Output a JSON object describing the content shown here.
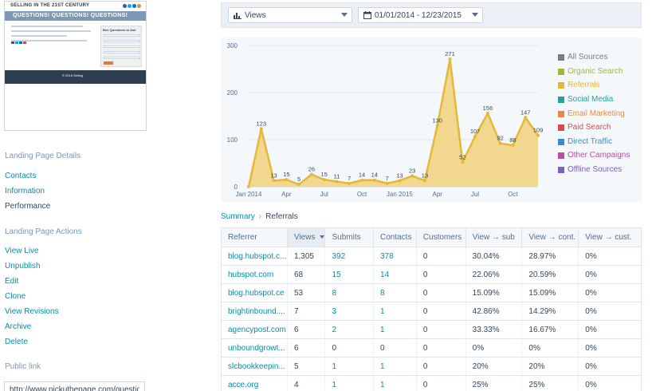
{
  "thumbnail": {
    "brand": "SELLING IN THE 21ST CENTURY",
    "banner": "QUESTIONS! QUESTIONS! QUESTIONS!",
    "form_title": "Ben Questions to Ask",
    "footer": "© 2015 Selling"
  },
  "sidebar": {
    "details_heading": "Landing Page Details",
    "details_links": [
      {
        "label": "Contacts"
      },
      {
        "label": "Information"
      },
      {
        "label": "Performance",
        "active": true
      }
    ],
    "actions_heading": "Landing Page Actions",
    "action_links": [
      {
        "label": "View Live"
      },
      {
        "label": "Unpublish"
      },
      {
        "label": "Edit"
      },
      {
        "label": "Clone"
      },
      {
        "label": "View Revisions"
      },
      {
        "label": "Archive"
      },
      {
        "label": "Delete"
      }
    ],
    "public_link_heading": "Public link",
    "public_link_value": "http://www.pickuthepage.com/questions"
  },
  "filters": {
    "metric": "Views",
    "date_range": "01/01/2014 - 12/23/2015"
  },
  "chart_data": {
    "type": "area",
    "x": [
      "Jan 2014",
      "Feb 2014",
      "Mar 2014",
      "Apr 2014",
      "May 2014",
      "Jun 2014",
      "Jul 2014",
      "Aug 2014",
      "Sep 2014",
      "Oct 2014",
      "Nov 2014",
      "Dec 2014",
      "Jan 2015",
      "Feb 2015",
      "Mar 2015",
      "Apr 2015",
      "May 2015",
      "Jun 2015",
      "Jul 2015",
      "Aug 2015",
      "Sep 2015",
      "Oct 2015",
      "Nov 2015",
      "Dec 2015"
    ],
    "xticks": [
      "Jan 2014",
      "Apr",
      "Jul",
      "Oct",
      "Jan 2015",
      "Apr",
      "Jul",
      "Oct"
    ],
    "values": [
      0,
      123,
      13,
      15,
      5,
      26,
      15,
      11,
      7,
      14,
      14,
      7,
      13,
      23,
      13,
      130,
      271,
      52,
      107,
      156,
      92,
      88,
      147,
      109
    ],
    "point_labels": [
      "",
      "123",
      "13",
      "15",
      "5",
      "26",
      "15",
      "11",
      "7",
      "14",
      "14",
      "7",
      "13",
      "23",
      "13",
      "130",
      "271",
      "52",
      "107",
      "156",
      "92",
      "88",
      "147",
      "109"
    ],
    "ylim": [
      0,
      300
    ],
    "yticks": [
      0,
      100,
      200,
      300
    ],
    "color": "#e4b839",
    "grid": true,
    "legend_position": "right"
  },
  "legend": [
    {
      "label": "All Sources",
      "color": "#7c7c7c"
    },
    {
      "label": "Organic Search",
      "color": "#a6b53a"
    },
    {
      "label": "Referrals",
      "color": "#e4b839"
    },
    {
      "label": "Social Media",
      "color": "#2aa39a"
    },
    {
      "label": "Email Marketing",
      "color": "#e68a45"
    },
    {
      "label": "Paid Search",
      "color": "#d84b4b"
    },
    {
      "label": "Direct Traffic",
      "color": "#3d8ccf"
    },
    {
      "label": "Other Campaigns",
      "color": "#b9519b"
    },
    {
      "label": "Offline Sources",
      "color": "#7b5ec6"
    }
  ],
  "breadcrumb": {
    "root": "Summary",
    "separator": "›",
    "current": "Referrals"
  },
  "table": {
    "columns": [
      "Referrer",
      "Views",
      "Submits",
      "Contacts",
      "Customers",
      "View → sub",
      "View → cont.",
      "View → cust."
    ],
    "rows": [
      [
        "blog.hubspot.c...",
        "1,305",
        "392",
        "378",
        "0",
        "30.04%",
        "28.97%",
        "0%"
      ],
      [
        "hubspot.com",
        "68",
        "15",
        "14",
        "0",
        "22.06%",
        "20.59%",
        "0%"
      ],
      [
        "blog.hubspot.ce",
        "53",
        "8",
        "8",
        "0",
        "15.09%",
        "15.09%",
        "0%"
      ],
      [
        "brightinbound....",
        "7",
        "3",
        "1",
        "0",
        "42.86%",
        "14.29%",
        "0%"
      ],
      [
        "agencypost.com",
        "6",
        "2",
        "1",
        "0",
        "33.33%",
        "16.67%",
        "0%"
      ],
      [
        "unboundgrowt...",
        "6",
        "0",
        "0",
        "0",
        "0%",
        "0%",
        "0%"
      ],
      [
        "slcbookkeepin...",
        "5",
        "1",
        "1",
        "0",
        "20%",
        "20%",
        "0%"
      ],
      [
        "acce.org",
        "4",
        "1",
        "1",
        "0",
        "25%",
        "25%",
        "0%"
      ]
    ]
  }
}
